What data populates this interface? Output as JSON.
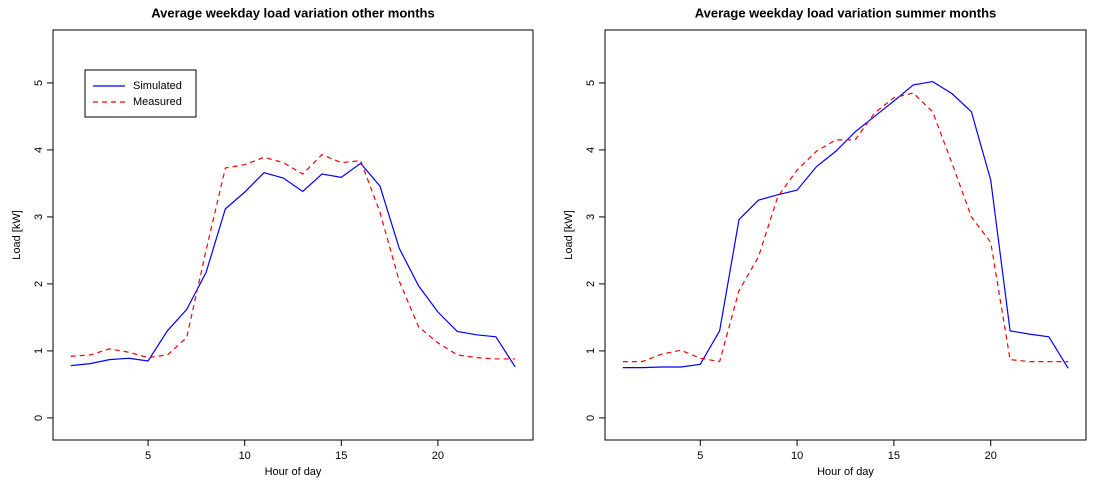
{
  "chart_data": [
    {
      "type": "line",
      "title": "Average weekday load variation other months",
      "x_label": "Hour of day",
      "y_label": "Load [kW]",
      "x": [
        1,
        2,
        3,
        4,
        5,
        6,
        7,
        8,
        9,
        10,
        11,
        12,
        13,
        14,
        15,
        16,
        17,
        18,
        19,
        20,
        21,
        22,
        23,
        24
      ],
      "series": [
        {
          "name": "Simulated",
          "color": "#0000ff",
          "dash": "solid",
          "values": [
            0.78,
            0.81,
            0.87,
            0.89,
            0.85,
            1.3,
            1.62,
            2.17,
            3.12,
            3.37,
            3.66,
            3.58,
            3.38,
            3.64,
            3.59,
            3.8,
            3.46,
            2.53,
            1.97,
            1.58,
            1.29,
            1.24,
            1.21,
            0.76
          ]
        },
        {
          "name": "Measured",
          "color": "#ff0000",
          "dash": "dashed",
          "values": [
            0.92,
            0.94,
            1.03,
            0.98,
            0.9,
            0.94,
            1.2,
            2.5,
            3.73,
            3.78,
            3.89,
            3.81,
            3.64,
            3.93,
            3.81,
            3.84,
            3.07,
            2.04,
            1.36,
            1.12,
            0.94,
            0.9,
            0.88,
            0.88
          ]
        }
      ],
      "xlim": [
        0.08,
        24.92
      ],
      "ylim": [
        -0.33,
        5.79
      ],
      "xticks": [
        5,
        10,
        15,
        20
      ],
      "yticks": [
        0,
        1,
        2,
        3,
        4,
        5
      ],
      "legend": "top-left"
    },
    {
      "type": "line",
      "title": "Average weekday load variation summer months",
      "x_label": "Hour of day",
      "y_label": "Load [kW]",
      "x": [
        1,
        2,
        3,
        4,
        5,
        6,
        7,
        8,
        9,
        10,
        11,
        12,
        13,
        14,
        15,
        16,
        17,
        18,
        19,
        20,
        21,
        22,
        23,
        24
      ],
      "series": [
        {
          "color": "#0000ff",
          "dash": "solid",
          "values": [
            0.75,
            0.75,
            0.76,
            0.76,
            0.8,
            1.3,
            2.96,
            3.25,
            3.33,
            3.4,
            3.75,
            3.98,
            4.27,
            4.5,
            4.73,
            4.97,
            5.02,
            4.84,
            4.57,
            3.55,
            1.3,
            1.25,
            1.21,
            0.74
          ]
        },
        {
          "color": "#ff0000",
          "dash": "dashed",
          "values": [
            0.84,
            0.84,
            0.95,
            1.01,
            0.89,
            0.84,
            1.9,
            2.4,
            3.3,
            3.7,
            3.98,
            4.15,
            4.15,
            4.55,
            4.78,
            4.85,
            4.57,
            3.8,
            3.0,
            2.62,
            0.87,
            0.84,
            0.84,
            0.84
          ]
        }
      ],
      "xlim": [
        0.08,
        24.92
      ],
      "ylim": [
        -0.33,
        5.79
      ],
      "xticks": [
        5,
        10,
        15,
        20
      ],
      "yticks": [
        0,
        1,
        2,
        3,
        4,
        5
      ]
    }
  ]
}
